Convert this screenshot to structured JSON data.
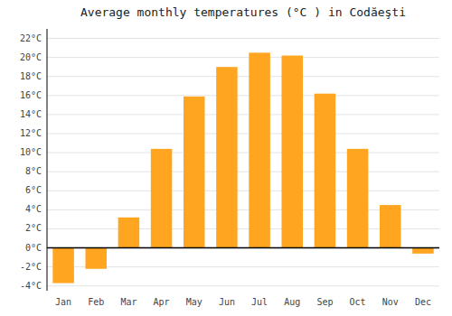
{
  "chart_data": {
    "type": "bar",
    "title": "Average monthly temperatures (°C ) in Codăeşti",
    "categories": [
      "Jan",
      "Feb",
      "Mar",
      "Apr",
      "May",
      "Jun",
      "Jul",
      "Aug",
      "Sep",
      "Oct",
      "Nov",
      "Dec"
    ],
    "values": [
      -3.7,
      -2.2,
      3.2,
      10.4,
      15.9,
      19.0,
      20.5,
      20.2,
      16.2,
      10.4,
      4.5,
      -0.6
    ],
    "color": "#FFA520",
    "ylim": [
      -4.5,
      23
    ],
    "yticks": [
      {
        "value": -4,
        "label": "-4°C"
      },
      {
        "value": -2,
        "label": "-2°C"
      },
      {
        "value": 0,
        "label": "0°C"
      },
      {
        "value": 2,
        "label": "2°C"
      },
      {
        "value": 4,
        "label": "4°C"
      },
      {
        "value": 6,
        "label": "6°C"
      },
      {
        "value": 8,
        "label": "8°C"
      },
      {
        "value": 10,
        "label": "10°C"
      },
      {
        "value": 12,
        "label": "12°C"
      },
      {
        "value": 14,
        "label": "14°C"
      },
      {
        "value": 16,
        "label": "16°C"
      },
      {
        "value": 18,
        "label": "18°C"
      },
      {
        "value": 20,
        "label": "20°C"
      },
      {
        "value": 22,
        "label": "22°C"
      }
    ],
    "grid": true
  }
}
